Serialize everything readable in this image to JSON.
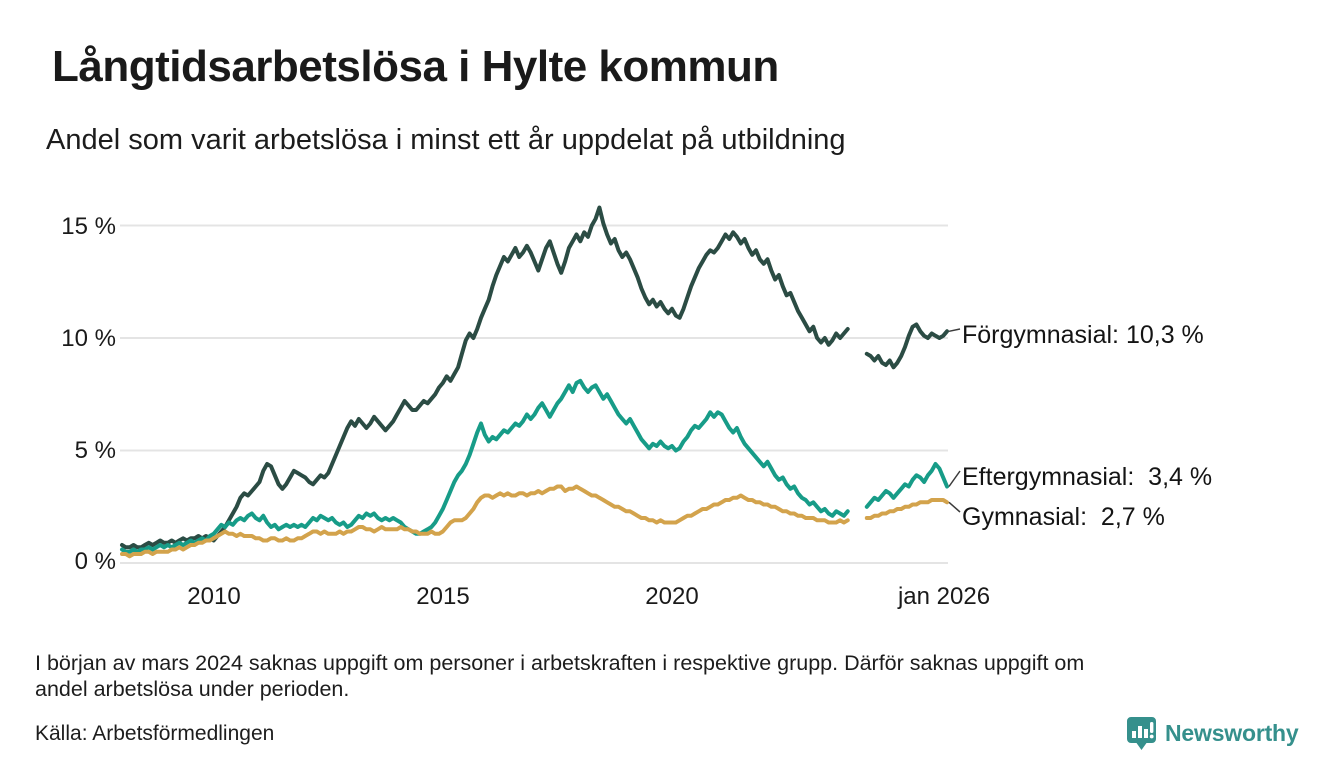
{
  "header": {
    "title": "Långtidsarbetslösa i Hylte kommun",
    "subtitle": "Andel som varit arbetslösa i minst ett år uppdelat på utbildning"
  },
  "footer": {
    "note_line1": "I början av mars 2024 saknas uppgift om personer i arbetskraften i respektive grupp. Därför saknas uppgift om",
    "note_line2": "andel arbetslösa under perioden.",
    "source": "Källa: Arbetsförmedlingen",
    "logo_text": "Newsworthy",
    "logo_color": "#35908c"
  },
  "chart_data": {
    "type": "line",
    "title": "Långtidsarbetslösa i Hylte kommun",
    "subtitle": "Andel som varit arbetslösa i minst ett år uppdelat på utbildning",
    "unit": "%",
    "frequency": "monthly",
    "x_start": "2008-01",
    "x_end": "2026-01",
    "ylim": [
      0,
      16.5
    ],
    "grid": "horizontal",
    "grid_color": "#e4e4e4",
    "missing_data_period": "early 2024 (values shown as gap)",
    "y_ticks": [
      {
        "value": 0,
        "label": "0 %"
      },
      {
        "value": 5,
        "label": "5 %"
      },
      {
        "value": 10,
        "label": "10 %"
      },
      {
        "value": 15,
        "label": "15 %"
      }
    ],
    "x_ticks": [
      {
        "month_index": 24,
        "label": "2010"
      },
      {
        "month_index": 84,
        "label": "2015"
      },
      {
        "month_index": 144,
        "label": "2020"
      },
      {
        "month_index": 216,
        "label": "jan 2026"
      }
    ],
    "series": [
      {
        "name": "Förgymnasial",
        "color": "#2b4c44",
        "latest_value": 10.3,
        "end_label": "Förgymnasial: 10,3 %",
        "values": [
          0.8,
          0.7,
          0.7,
          0.8,
          0.7,
          0.7,
          0.8,
          0.9,
          0.8,
          0.9,
          1.0,
          0.9,
          0.9,
          1.0,
          0.9,
          1.0,
          1.1,
          1.0,
          1.1,
          1.1,
          1.2,
          1.1,
          1.2,
          1.1,
          1.0,
          1.2,
          1.4,
          1.6,
          1.9,
          2.2,
          2.5,
          2.9,
          3.1,
          3.0,
          3.2,
          3.4,
          3.6,
          4.1,
          4.4,
          4.3,
          3.9,
          3.5,
          3.3,
          3.5,
          3.8,
          4.1,
          4.0,
          3.9,
          3.8,
          3.6,
          3.5,
          3.7,
          3.9,
          3.8,
          4.0,
          4.4,
          4.8,
          5.2,
          5.6,
          6.0,
          6.3,
          6.1,
          6.4,
          6.2,
          6.0,
          6.2,
          6.5,
          6.3,
          6.1,
          5.9,
          6.1,
          6.3,
          6.6,
          6.9,
          7.2,
          7.0,
          6.8,
          6.8,
          7.0,
          7.2,
          7.1,
          7.3,
          7.5,
          7.8,
          8.0,
          8.3,
          8.1,
          8.4,
          8.7,
          9.3,
          9.9,
          10.2,
          10.0,
          10.4,
          10.9,
          11.3,
          11.7,
          12.3,
          12.8,
          13.2,
          13.6,
          13.4,
          13.7,
          14.0,
          13.6,
          13.8,
          14.1,
          13.8,
          13.4,
          13.0,
          13.5,
          14.0,
          14.3,
          13.8,
          13.3,
          12.9,
          13.4,
          14.0,
          14.3,
          14.6,
          14.3,
          14.7,
          14.5,
          15.0,
          15.3,
          15.8,
          15.1,
          14.6,
          14.2,
          14.4,
          13.9,
          13.6,
          13.8,
          13.5,
          13.1,
          12.7,
          12.2,
          11.8,
          11.5,
          11.7,
          11.4,
          11.6,
          11.3,
          11.1,
          11.3,
          11.0,
          10.9,
          11.3,
          11.8,
          12.3,
          12.7,
          13.1,
          13.4,
          13.7,
          13.9,
          13.8,
          14.0,
          14.3,
          14.6,
          14.4,
          14.7,
          14.5,
          14.2,
          14.4,
          14.0,
          13.7,
          13.9,
          13.5,
          13.3,
          13.5,
          13.0,
          12.6,
          12.8,
          12.3,
          11.9,
          12.0,
          11.6,
          11.2,
          10.9,
          10.6,
          10.3,
          10.5,
          10.0,
          9.8,
          10.0,
          9.7,
          9.9,
          10.2,
          10.0,
          10.2,
          10.4,
          null,
          null,
          null,
          null,
          9.3,
          9.2,
          9.0,
          9.2,
          8.9,
          8.8,
          9.0,
          8.7,
          8.9,
          9.2,
          9.6,
          10.1,
          10.5,
          10.6,
          10.3,
          10.1,
          10.0,
          10.2,
          10.1,
          10.0,
          10.1,
          10.3
        ]
      },
      {
        "name": "Eftergymnasial",
        "color": "#179c88",
        "latest_value": 3.4,
        "end_label": "Eftergymnasial:  3,4 %",
        "values": [
          0.6,
          0.5,
          0.5,
          0.6,
          0.5,
          0.6,
          0.6,
          0.7,
          0.6,
          0.7,
          0.8,
          0.7,
          0.8,
          0.7,
          0.8,
          0.9,
          0.8,
          0.9,
          1.0,
          0.9,
          1.0,
          1.1,
          1.0,
          1.2,
          1.3,
          1.5,
          1.7,
          1.6,
          1.8,
          1.7,
          1.9,
          2.0,
          1.9,
          2.1,
          2.2,
          2.0,
          1.9,
          2.1,
          1.8,
          1.6,
          1.7,
          1.5,
          1.6,
          1.7,
          1.6,
          1.7,
          1.6,
          1.7,
          1.6,
          1.8,
          2.0,
          1.9,
          2.1,
          2.0,
          1.9,
          2.0,
          1.8,
          1.7,
          1.8,
          1.6,
          1.7,
          1.9,
          2.1,
          2.0,
          2.2,
          2.1,
          2.2,
          2.0,
          1.9,
          2.0,
          1.9,
          2.0,
          1.9,
          1.8,
          1.6,
          1.5,
          1.4,
          1.3,
          1.3,
          1.4,
          1.5,
          1.6,
          1.8,
          2.1,
          2.4,
          2.8,
          3.2,
          3.6,
          3.9,
          4.1,
          4.4,
          4.8,
          5.3,
          5.8,
          6.2,
          5.7,
          5.4,
          5.6,
          5.5,
          5.7,
          5.9,
          5.8,
          6.0,
          6.2,
          6.1,
          6.3,
          6.6,
          6.4,
          6.6,
          6.9,
          7.1,
          6.8,
          6.5,
          6.8,
          7.1,
          7.3,
          7.6,
          7.9,
          7.6,
          8.0,
          8.1,
          7.8,
          7.6,
          7.8,
          7.9,
          7.6,
          7.3,
          7.5,
          7.2,
          6.9,
          6.6,
          6.4,
          6.2,
          6.4,
          6.1,
          5.8,
          5.5,
          5.3,
          5.1,
          5.3,
          5.2,
          5.4,
          5.2,
          5.1,
          5.2,
          5.0,
          5.1,
          5.4,
          5.6,
          5.9,
          6.1,
          6.0,
          6.2,
          6.4,
          6.7,
          6.5,
          6.7,
          6.6,
          6.3,
          6.0,
          5.8,
          6.0,
          5.6,
          5.3,
          5.1,
          4.9,
          4.7,
          4.5,
          4.3,
          4.5,
          4.2,
          3.9,
          3.7,
          3.8,
          3.5,
          3.3,
          3.4,
          3.1,
          2.9,
          2.8,
          2.6,
          2.7,
          2.5,
          2.3,
          2.4,
          2.2,
          2.1,
          2.3,
          2.2,
          2.1,
          2.3,
          null,
          null,
          null,
          null,
          2.5,
          2.7,
          2.9,
          2.8,
          3.0,
          3.2,
          3.1,
          2.9,
          3.1,
          3.3,
          3.5,
          3.4,
          3.7,
          3.9,
          3.8,
          3.6,
          3.9,
          4.1,
          4.4,
          4.2,
          3.8,
          3.4
        ]
      },
      {
        "name": "Gymnasial",
        "color": "#d3a34c",
        "latest_value": 2.7,
        "end_label": "Gymnasial:  2,7 %",
        "values": [
          0.4,
          0.4,
          0.3,
          0.4,
          0.4,
          0.4,
          0.5,
          0.5,
          0.4,
          0.5,
          0.5,
          0.5,
          0.5,
          0.6,
          0.6,
          0.7,
          0.6,
          0.7,
          0.8,
          0.8,
          0.9,
          0.9,
          1.0,
          1.0,
          1.1,
          1.2,
          1.3,
          1.4,
          1.3,
          1.3,
          1.2,
          1.3,
          1.2,
          1.2,
          1.2,
          1.1,
          1.1,
          1.0,
          1.0,
          1.1,
          1.1,
          1.0,
          1.0,
          1.1,
          1.0,
          1.0,
          1.1,
          1.1,
          1.2,
          1.3,
          1.4,
          1.4,
          1.3,
          1.4,
          1.3,
          1.3,
          1.3,
          1.4,
          1.3,
          1.4,
          1.4,
          1.5,
          1.6,
          1.6,
          1.5,
          1.5,
          1.4,
          1.5,
          1.6,
          1.5,
          1.5,
          1.5,
          1.5,
          1.6,
          1.5,
          1.5,
          1.4,
          1.4,
          1.3,
          1.3,
          1.3,
          1.4,
          1.3,
          1.3,
          1.4,
          1.6,
          1.8,
          1.9,
          1.9,
          1.9,
          2.0,
          2.2,
          2.4,
          2.7,
          2.9,
          3.0,
          3.0,
          2.9,
          3.0,
          3.1,
          3.0,
          3.1,
          3.0,
          3.0,
          3.1,
          3.1,
          3.0,
          3.1,
          3.1,
          3.2,
          3.1,
          3.2,
          3.3,
          3.3,
          3.4,
          3.4,
          3.2,
          3.3,
          3.3,
          3.4,
          3.3,
          3.2,
          3.1,
          3.0,
          3.0,
          2.9,
          2.8,
          2.7,
          2.6,
          2.5,
          2.5,
          2.4,
          2.3,
          2.3,
          2.2,
          2.1,
          2.0,
          2.0,
          1.9,
          1.9,
          1.8,
          1.9,
          1.8,
          1.8,
          1.8,
          1.8,
          1.9,
          2.0,
          2.1,
          2.1,
          2.2,
          2.3,
          2.4,
          2.4,
          2.5,
          2.6,
          2.6,
          2.7,
          2.8,
          2.8,
          2.9,
          2.9,
          3.0,
          2.9,
          2.8,
          2.8,
          2.7,
          2.7,
          2.6,
          2.6,
          2.5,
          2.5,
          2.4,
          2.3,
          2.3,
          2.2,
          2.2,
          2.1,
          2.1,
          2.0,
          2.0,
          2.0,
          1.9,
          1.9,
          1.9,
          1.8,
          1.8,
          1.8,
          1.9,
          1.8,
          1.9,
          null,
          null,
          null,
          null,
          2.0,
          2.0,
          2.1,
          2.1,
          2.2,
          2.2,
          2.3,
          2.3,
          2.4,
          2.4,
          2.5,
          2.5,
          2.6,
          2.6,
          2.7,
          2.7,
          2.7,
          2.8,
          2.8,
          2.8,
          2.8,
          2.7
        ]
      }
    ]
  }
}
